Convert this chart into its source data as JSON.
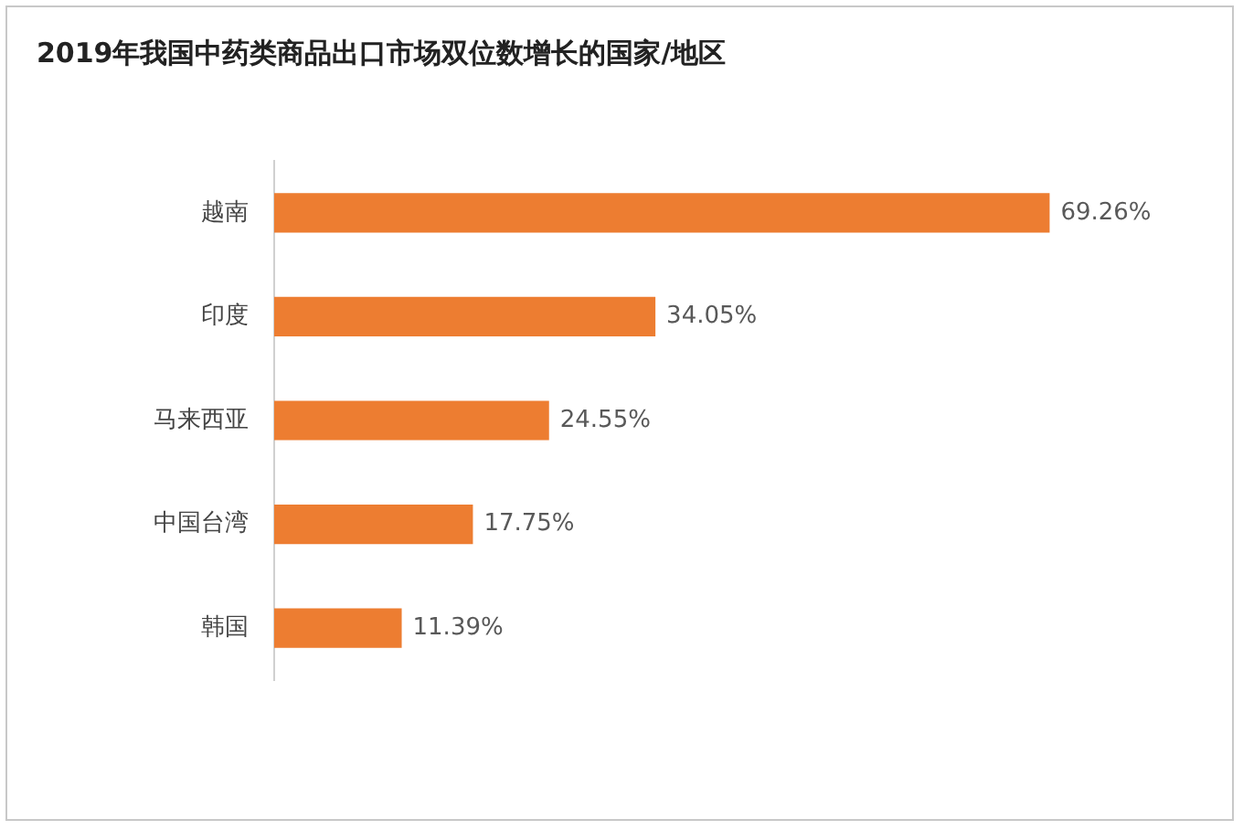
{
  "chart_data": {
    "type": "bar",
    "orientation": "horizontal",
    "title": "2019年我国中药类商品出口市场双位数增长的国家/地区",
    "categories": [
      "越南",
      "印度",
      "马来西亚",
      "中国台湾",
      "韩国"
    ],
    "values": [
      69.26,
      34.05,
      24.55,
      17.75,
      11.39
    ],
    "value_labels": [
      "69.26%",
      "34.05%",
      "24.55%",
      "17.75%",
      "11.39%"
    ],
    "color": "#ed7d31",
    "tick_labels": "y",
    "grid": false,
    "legend": false
  }
}
